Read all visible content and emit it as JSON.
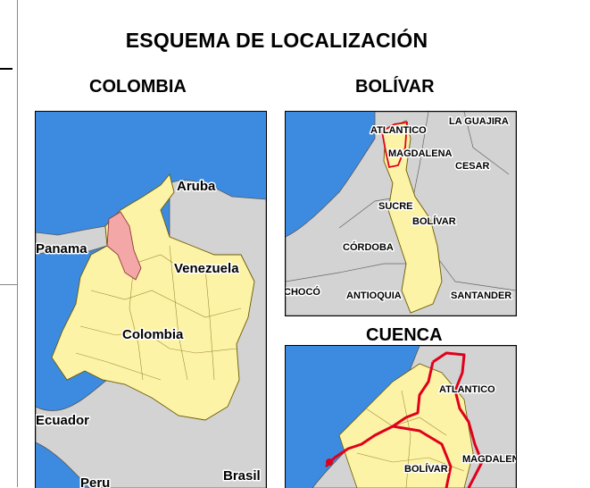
{
  "title": "ESQUEMA DE LOCALIZACIÓN",
  "panels": {
    "colombia": {
      "heading": "COLOMBIA",
      "labels": {
        "aruba": "Aruba",
        "panama": "Panama",
        "venezuela": "Venezuela",
        "colombia": "Colombia",
        "ecuador": "Ecuador",
        "brasil": "Brasil",
        "peru": "Peru"
      }
    },
    "bolivar": {
      "heading": "BOLÍVAR",
      "labels": {
        "atlantico": "ATLANTICO",
        "la_guajira": "LA GUAJIRA",
        "magdalena": "MAGDALENA",
        "cesar": "CESAR",
        "sucre": "SUCRE",
        "bolivar": "BOLÍVAR",
        "cordoba": "CÓRDOBA",
        "choco": "CHOCÓ",
        "antioquia": "ANTIOQUIA",
        "santander": "SANTANDER"
      }
    },
    "cuenca": {
      "heading": "CUENCA",
      "labels": {
        "atlantico": "ATLANTICO",
        "magdalena": "MAGDALENA",
        "bolivar": "BOLÍVAR"
      }
    }
  },
  "colors": {
    "sea": "#3d8be0",
    "colombia_land": "#fdf3a6",
    "neighbor_land": "#d3d3d3",
    "highlight_region": "#f4a7a7",
    "basin_outline": "#e0001b"
  }
}
